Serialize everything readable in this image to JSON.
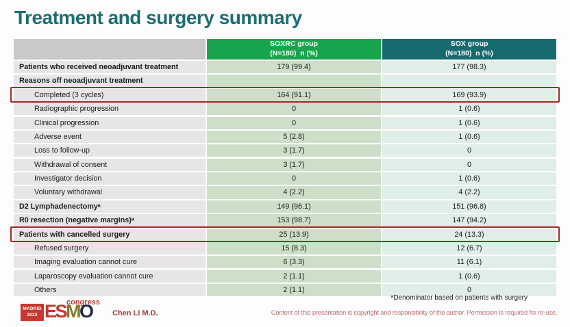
{
  "slide": {
    "title": "Treatment and surgery summary",
    "footnote": "ᵃDenominator based on patients with surgery",
    "author": "Chen LI M.D.",
    "copyright": "Content of this presentation is copyright and responsibility of the author. Permission is required for re-use."
  },
  "logo": {
    "location": "MADRID",
    "year": "2023",
    "letters": [
      "E",
      "S",
      "M",
      "O"
    ],
    "congress": "congress"
  },
  "table": {
    "headers": {
      "soxrc": {
        "line1": "SOXRC group",
        "line2": "(N=180)  n (%)"
      },
      "sox": {
        "line1": "SOX group",
        "line2": "(N=180)  n (%)"
      }
    },
    "rows": [
      {
        "label": "Patients who received neoadjuvant treatment",
        "soxrc": "179 (99.4)",
        "sox": "177 (98.3)",
        "bold": true
      },
      {
        "label": "Reasons off neoadjuvant treatment",
        "soxrc": "",
        "sox": "",
        "bold": true
      },
      {
        "label": "Completed (3 cycles)",
        "soxrc": "164 (91.1)",
        "sox": "169 (93.9)",
        "indent": true,
        "highlight": true
      },
      {
        "label": "Radiographic progression",
        "soxrc": "0",
        "sox": "1 (0.6)",
        "indent": true
      },
      {
        "label": "Clinical progression",
        "soxrc": "0",
        "sox": "1 (0.6)",
        "indent": true
      },
      {
        "label": "Adverse event",
        "soxrc": "5 (2.8)",
        "sox": "1 (0.6)",
        "indent": true
      },
      {
        "label": "Loss to follow-up",
        "soxrc": "3 (1.7)",
        "sox": "0",
        "indent": true
      },
      {
        "label": "Withdrawal of consent",
        "soxrc": "3 (1.7)",
        "sox": "0",
        "indent": true
      },
      {
        "label": "Investigator decision",
        "soxrc": "0",
        "sox": "1 (0.6)",
        "indent": true
      },
      {
        "label": "Voluntary withdrawal",
        "soxrc": "4 (2.2)",
        "sox": "4 (2.2)",
        "indent": true
      },
      {
        "label": "D2 Lymphadenectomyᵃ",
        "soxrc": "149 (96.1)",
        "sox": "151 (96.8)",
        "bold": true
      },
      {
        "label": "R0 resection (negative margins)ᵃ",
        "soxrc": "153 (98.7)",
        "sox": "147 (94.2)",
        "bold": true
      },
      {
        "label": "Patients with cancelled surgery",
        "soxrc": "25 (13.9)",
        "sox": "24 (13.3)",
        "bold": true,
        "highlight": true
      },
      {
        "label": "Refused surgery",
        "soxrc": "15 (8.3)",
        "sox": "12 (6.7)",
        "indent": true
      },
      {
        "label": "Imaging evaluation cannot cure",
        "soxrc": "6 (3.3)",
        "sox": "11 (6.1)",
        "indent": true
      },
      {
        "label": "Laparoscopy evaluation cannot cure",
        "soxrc": "2 (1.1)",
        "sox": "1 (0.6)",
        "indent": true
      },
      {
        "label": "Others",
        "soxrc": "2 (1.1)",
        "sox": "0",
        "indent": true
      }
    ]
  },
  "colors": {
    "title": "#1d6e73",
    "green": "#18a54d",
    "teal": "#176a6e",
    "header-gray": "#c9c9c9",
    "label-bg": "#e8e5e8",
    "soxrc-bg": "#cddfc8",
    "sox-bg": "#e0eee8",
    "red": "#9e2b28",
    "rose": "#c06a76",
    "author-red": "#a53c36",
    "logo-red": "#c83730",
    "logo-olive": "#7c7c2a",
    "logo-navy": "#232c44"
  }
}
